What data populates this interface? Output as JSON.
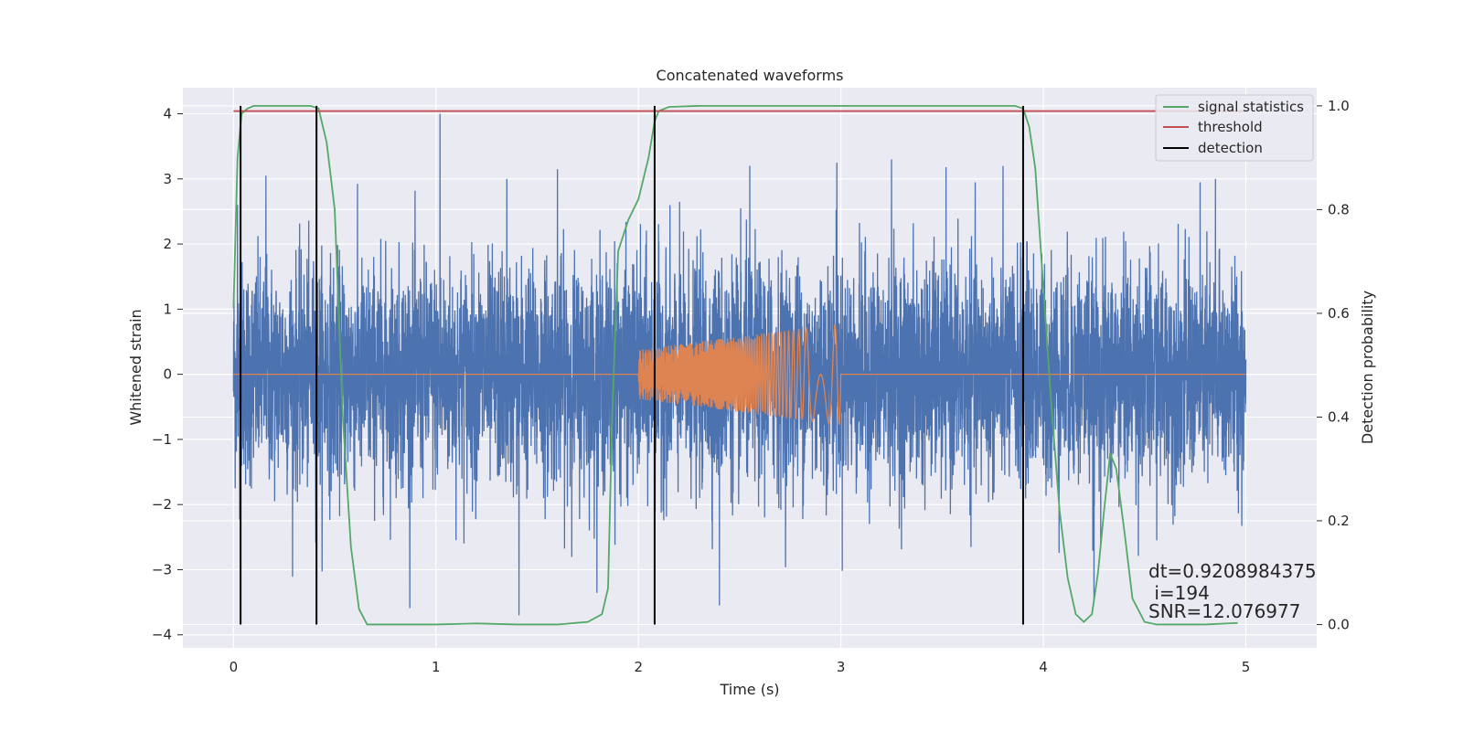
{
  "chart_data": {
    "type": "line",
    "title": "Concatenated waveforms",
    "xlabel": "Time (s)",
    "ylabel": "Whitened strain",
    "y2label": "Detection probability",
    "xlim": [
      -0.25,
      5.35
    ],
    "ylim": [
      -4.2,
      4.4
    ],
    "y2lim": [
      -0.045,
      1.035
    ],
    "xticks": [
      0,
      1,
      2,
      3,
      4,
      5
    ],
    "xtick_labels": [
      "0",
      "1",
      "2",
      "3",
      "4",
      "5"
    ],
    "yticks": [
      4,
      3,
      2,
      1,
      0,
      -1,
      -2,
      -3,
      -4
    ],
    "ytick_labels": [
      "4",
      "3",
      "2",
      "1",
      "0",
      "−1",
      "−2",
      "−3",
      "−4"
    ],
    "y2ticks": [
      1.0,
      0.8,
      0.6,
      0.4,
      0.2,
      0.0
    ],
    "y2tick_labels": [
      "1.0",
      "0.8",
      "0.6",
      "0.4",
      "0.2",
      "0.0"
    ],
    "grid": true,
    "legend_position": "top-right",
    "legend": [
      {
        "label": "signal statistics",
        "color": "#55a868"
      },
      {
        "label": "threshold",
        "color": "#c44e52"
      },
      {
        "label": "detection",
        "color": "#000000"
      }
    ],
    "series": [
      {
        "name": "",
        "axis": "left",
        "color": "#4c72b0",
        "kind": "noise",
        "x_range": [
          0,
          5
        ],
        "envelope_core": 0.85,
        "envelope_peak": [
          -3.7,
          4.0
        ],
        "peaks": [
          [
            0.02,
            2.6
          ],
          [
            0.16,
            3.05
          ],
          [
            1.02,
            4.0
          ],
          [
            1.41,
            -3.7
          ],
          [
            1.35,
            3.0
          ],
          [
            1.6,
            3.15
          ],
          [
            2.55,
            3.2
          ],
          [
            2.98,
            3.25
          ],
          [
            3.25,
            3.3
          ],
          [
            4.85,
            3.0
          ],
          [
            4.25,
            -3.5
          ],
          [
            2.4,
            -3.55
          ]
        ]
      },
      {
        "name": "",
        "axis": "left",
        "color": "#dd8452",
        "kind": "chirp",
        "x_range": [
          0,
          5
        ],
        "burst_start": 2.0,
        "burst_end": 3.0,
        "amp_start": 0.38,
        "amp_end": 0.78
      },
      {
        "name": "signal statistics",
        "axis": "right",
        "color": "#55a868",
        "x": [
          0.0,
          0.02,
          0.04,
          0.07,
          0.1,
          0.2,
          0.3,
          0.38,
          0.42,
          0.46,
          0.5,
          0.54,
          0.58,
          0.62,
          0.66,
          0.8,
          1.0,
          1.2,
          1.4,
          1.6,
          1.75,
          1.82,
          1.85,
          1.87,
          1.9,
          1.95,
          2.0,
          2.05,
          2.08,
          2.1,
          2.15,
          2.3,
          2.6,
          3.0,
          3.4,
          3.7,
          3.86,
          3.9,
          3.93,
          3.96,
          4.0,
          4.04,
          4.08,
          4.12,
          4.16,
          4.2,
          4.24,
          4.27,
          4.3,
          4.33,
          4.36,
          4.4,
          4.44,
          4.5,
          4.56,
          4.62,
          4.8,
          4.96
        ],
        "y": [
          0.61,
          0.9,
          0.985,
          0.995,
          1.0,
          1.0,
          1.0,
          1.0,
          0.995,
          0.93,
          0.8,
          0.4,
          0.15,
          0.03,
          0.0,
          0.0,
          0.0,
          0.002,
          0.0,
          0.0,
          0.005,
          0.02,
          0.07,
          0.4,
          0.72,
          0.78,
          0.82,
          0.9,
          0.97,
          0.99,
          0.998,
          1.0,
          1.0,
          1.0,
          1.0,
          1.0,
          1.0,
          0.995,
          0.96,
          0.88,
          0.65,
          0.42,
          0.22,
          0.09,
          0.02,
          0.005,
          0.02,
          0.1,
          0.22,
          0.33,
          0.3,
          0.18,
          0.05,
          0.005,
          0.0,
          0.0,
          0.0,
          0.003
        ]
      },
      {
        "name": "threshold",
        "axis": "right",
        "color": "#c44e52",
        "x": [
          0.0,
          5.0
        ],
        "y": [
          0.99,
          0.99
        ]
      }
    ],
    "detections": {
      "name": "detection",
      "color": "#000000",
      "x": [
        0.035,
        0.41,
        2.08,
        3.9
      ],
      "y_range": [
        0.0,
        1.0
      ]
    },
    "annotation_lines": [
      "dt=0.9208984375",
      " i=194",
      "SNR=12.076977"
    ]
  }
}
